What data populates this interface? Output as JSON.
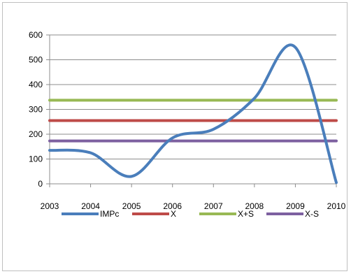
{
  "chart_data": {
    "type": "line",
    "x": [
      "2003",
      "2004",
      "2005",
      "2006",
      "2007",
      "2008",
      "2009",
      "2010"
    ],
    "ylim": [
      0,
      600
    ],
    "yticks": [
      "0",
      "100",
      "200",
      "300",
      "400",
      "500",
      "600"
    ],
    "grid": true,
    "legend": "bottom",
    "series": [
      {
        "name": "IMPc",
        "color": "#4a7ebb",
        "values": [
          135,
          125,
          30,
          185,
          220,
          345,
          550,
          5
        ]
      },
      {
        "name": "X",
        "color": "#be4b48",
        "values": [
          255,
          255,
          255,
          255,
          255,
          255,
          255,
          255
        ]
      },
      {
        "name": "X+S",
        "color": "#98b954",
        "values": [
          337,
          337,
          337,
          337,
          337,
          337,
          337,
          337
        ]
      },
      {
        "name": "X-S",
        "color": "#7d60a0",
        "values": [
          173,
          173,
          173,
          173,
          173,
          173,
          173,
          173
        ]
      }
    ]
  }
}
